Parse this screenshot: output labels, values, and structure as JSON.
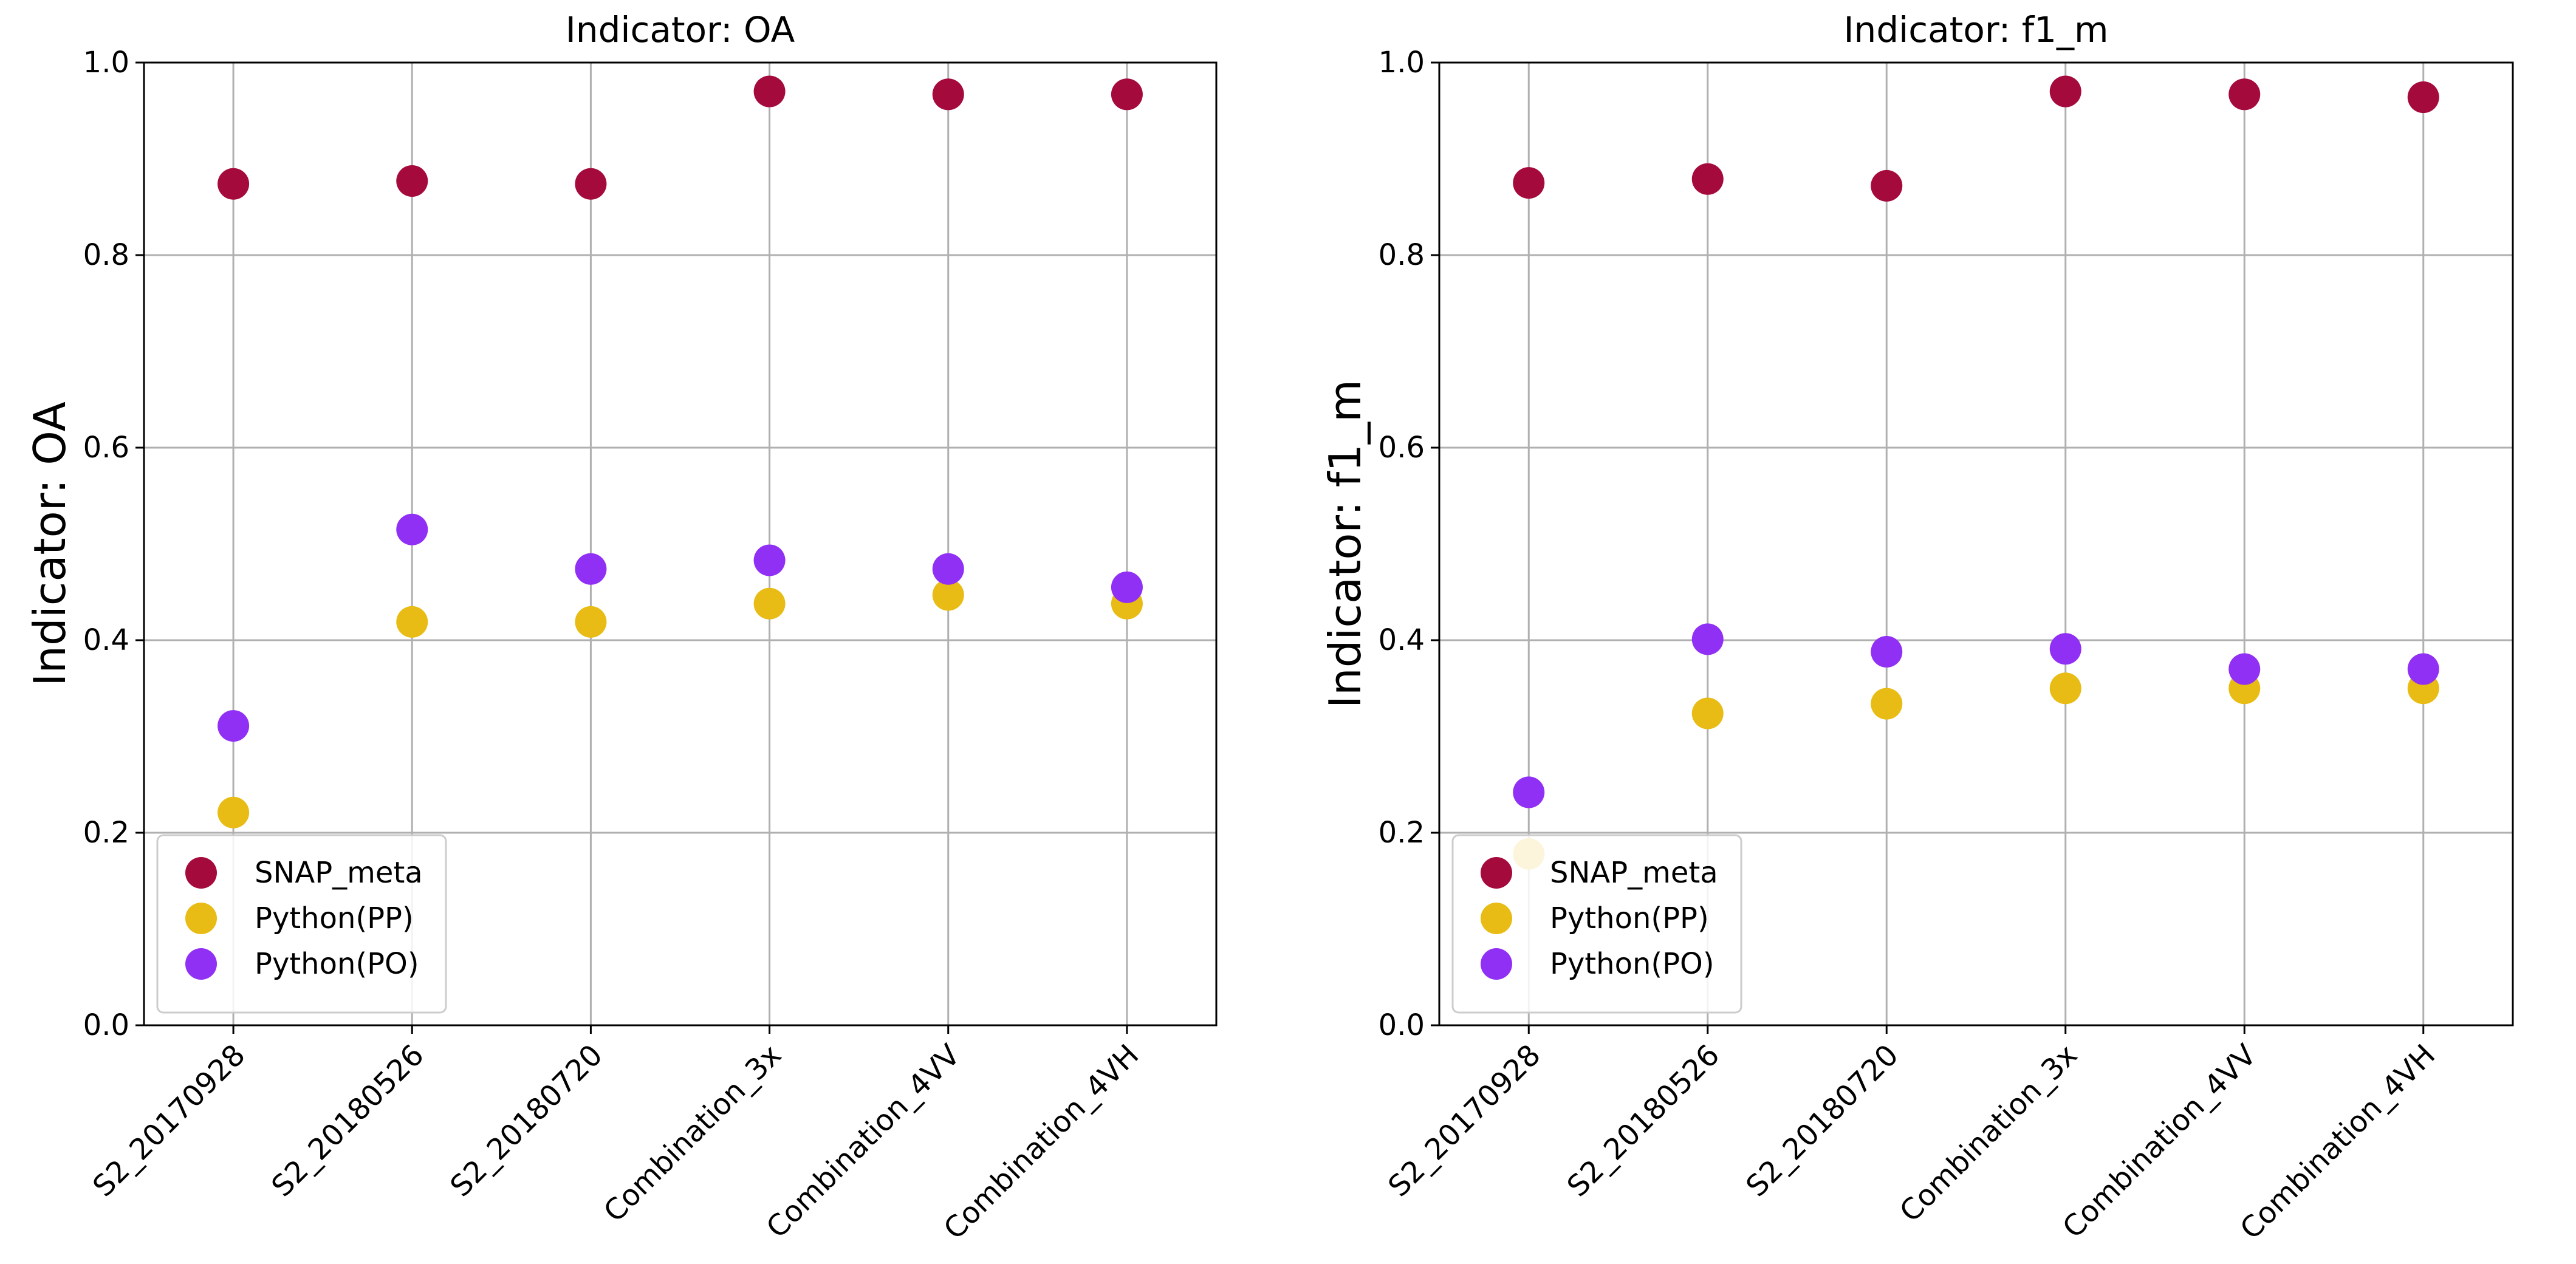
{
  "chart_data": [
    {
      "type": "scatter",
      "title": "Indicator: OA",
      "xlabel": "",
      "ylabel": "Indicator: OA",
      "categories": [
        "S2_20170928",
        "S2_20180526",
        "S2_20180720",
        "Combination_3x",
        "Combination_4VV",
        "Combination_4VH"
      ],
      "yticks": [
        "0.0",
        "0.2",
        "0.4",
        "0.6",
        "0.8",
        "1.0"
      ],
      "ylim": [
        0,
        1.0
      ],
      "grid": true,
      "legend_position": "lower-left",
      "series": [
        {
          "name": "SNAP_meta",
          "color": "#a50a3c",
          "values": [
            0.874,
            0.877,
            0.874,
            0.97,
            0.967,
            0.967
          ]
        },
        {
          "name": "Python(PP)",
          "color": "#e8bc14",
          "values": [
            0.221,
            0.419,
            0.419,
            0.438,
            0.447,
            0.438
          ]
        },
        {
          "name": "Python(PO)",
          "color": "#9130f5",
          "values": [
            0.311,
            0.515,
            0.474,
            0.483,
            0.474,
            0.455
          ]
        }
      ]
    },
    {
      "type": "scatter",
      "title": "Indicator: f1_m",
      "xlabel": "",
      "ylabel": "Indicator: f1_m",
      "categories": [
        "S2_20170928",
        "S2_20180526",
        "S2_20180720",
        "Combination_3x",
        "Combination_4VV",
        "Combination_4VH"
      ],
      "yticks": [
        "0.0",
        "0.2",
        "0.4",
        "0.6",
        "0.8",
        "1.0"
      ],
      "ylim": [
        0,
        1.0
      ],
      "grid": true,
      "legend_position": "lower-left",
      "series": [
        {
          "name": "SNAP_meta",
          "color": "#a50a3c",
          "values": [
            0.875,
            0.879,
            0.872,
            0.97,
            0.967,
            0.964
          ]
        },
        {
          "name": "Python(PP)",
          "color": "#e8bc14",
          "values": [
            0.178,
            0.324,
            0.334,
            0.35,
            0.35,
            0.35
          ]
        },
        {
          "name": "Python(PO)",
          "color": "#9130f5",
          "values": [
            0.242,
            0.401,
            0.388,
            0.391,
            0.37,
            0.37
          ]
        }
      ]
    }
  ]
}
